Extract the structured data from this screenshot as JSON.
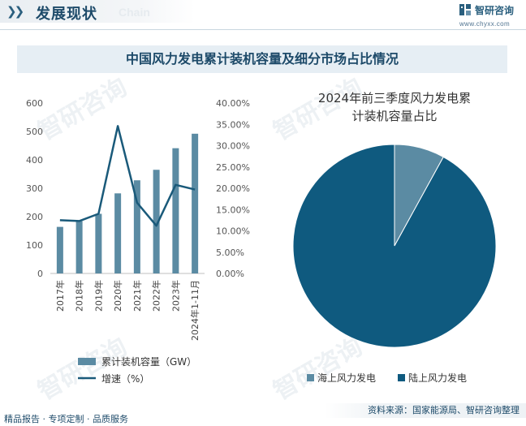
{
  "header": {
    "title": "发展现状",
    "title_en": "Chain",
    "brand_name": "智研咨询",
    "brand_url": "www.chyxx.com"
  },
  "chart_title": "中国风力发电累计装机容量及细分市场占比情况",
  "footer": {
    "left": "精品报告 · 专项定制 · 品质服务",
    "right": "资料来源：国家能源局、智研咨询整理"
  },
  "watermark_text": "智研咨询",
  "colors": {
    "bar": "#5b8ba3",
    "line": "#1a5a7a",
    "pie_offshore": "#5b8ba3",
    "pie_onshore": "#0f5a7f",
    "title_bg": "#e6eef4",
    "title_text": "#1d4a69"
  },
  "chart_data": [
    {
      "type": "bar",
      "categories": [
        "2017年",
        "2018年",
        "2019年",
        "2020年",
        "2021年",
        "2022年",
        "2023年",
        "2024年1-11月"
      ],
      "series": [
        {
          "name": "累计装机容量（GW）",
          "type": "bar",
          "axis": "left",
          "values": [
            164,
            184,
            210,
            282,
            328,
            365,
            441,
            492
          ]
        },
        {
          "name": "增速（%）",
          "type": "line",
          "axis": "right",
          "values": [
            12.5,
            12.3,
            14.0,
            34.6,
            16.6,
            11.2,
            20.8,
            19.7
          ]
        }
      ],
      "ylim": [
        0,
        600
      ],
      "yticks": [
        "0",
        "100",
        "200",
        "300",
        "400",
        "500",
        "600"
      ],
      "y2lim": [
        0,
        40
      ],
      "y2ticks": [
        "0.00%",
        "5.00%",
        "10.00%",
        "15.00%",
        "20.00%",
        "25.00%",
        "30.00%",
        "35.00%",
        "40.00%"
      ],
      "grid": false,
      "legend": "bottom"
    },
    {
      "type": "pie",
      "title": "2024年前三季度风力发电累计装机容量占比",
      "title_lines": [
        "2024年前三季度风力发电累",
        "计装机容量占比"
      ],
      "slices": [
        {
          "label": "海上风力发电",
          "value": 8
        },
        {
          "label": "陆上风力发电",
          "value": 92
        }
      ],
      "legend": "bottom"
    }
  ]
}
